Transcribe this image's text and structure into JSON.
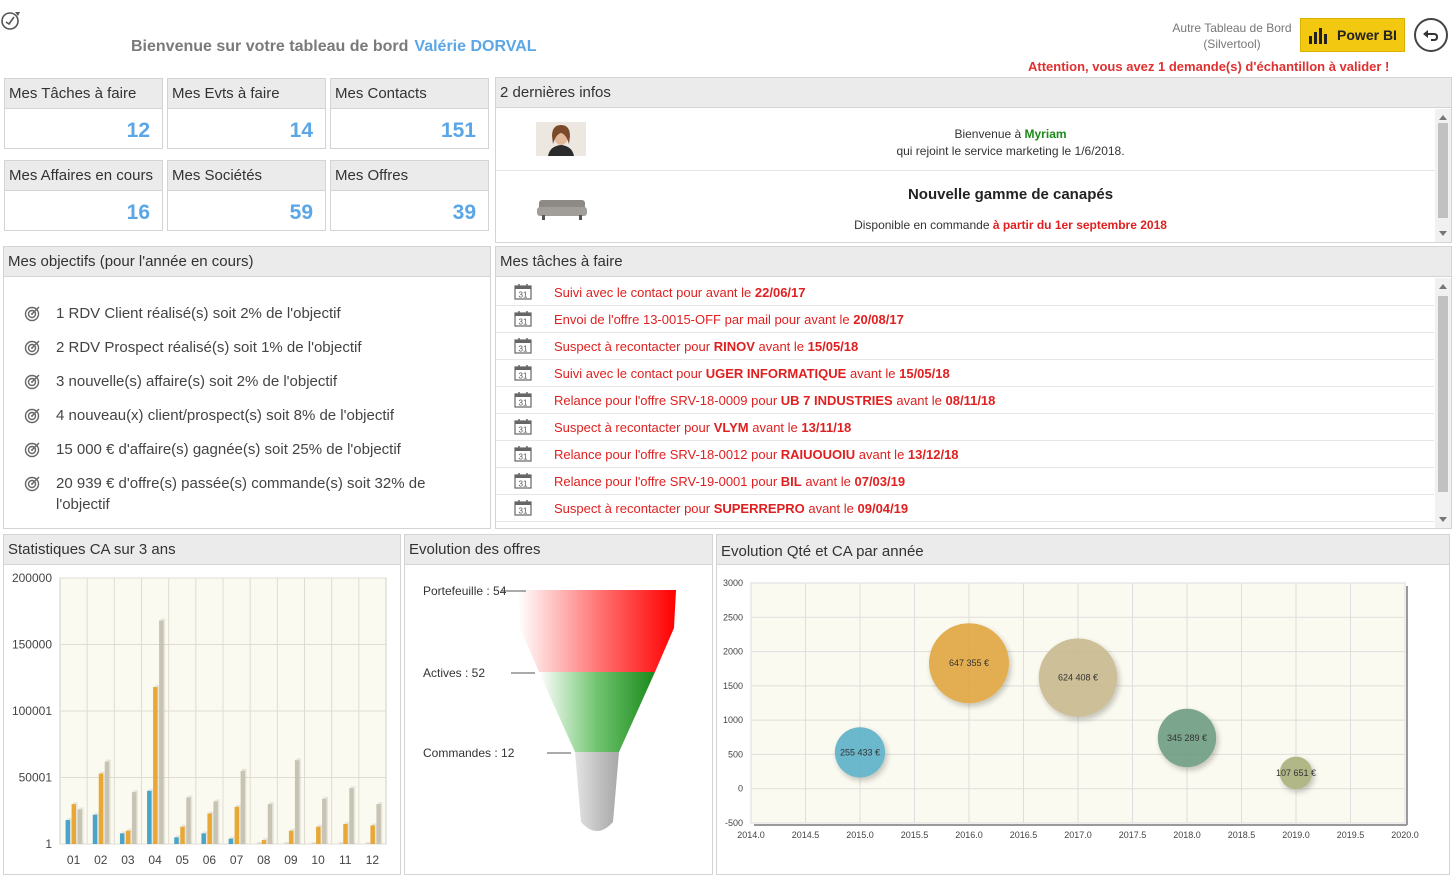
{
  "header": {
    "welcome": "Bienvenue sur votre tableau de bord",
    "user": "Valérie DORVAL",
    "other_board_line1": "Autre Tableau de Bord",
    "other_board_line2": "(Silvertool)",
    "powerbi_label": "Power BI",
    "alert": "Attention, vous avez 1 demande(s) d'échantillon à valider !"
  },
  "tiles": [
    {
      "label": "Mes Tâches à faire",
      "value": "12"
    },
    {
      "label": "Mes Evts à faire",
      "value": "14"
    },
    {
      "label": "Mes Contacts",
      "value": "151"
    },
    {
      "label": "Mes Affaires en cours",
      "value": "16"
    },
    {
      "label": "Mes Sociétés",
      "value": "59"
    },
    {
      "label": "Mes Offres",
      "value": "39"
    }
  ],
  "objectives": {
    "title": "Mes objectifs (pour l'année en cours)",
    "items": [
      "1 RDV Client réalisé(s) soit 2% de l'objectif",
      "2 RDV Prospect réalisé(s) soit 1% de l'objectif",
      "3 nouvelle(s) affaire(s) soit 2% de l'objectif",
      "4 nouveau(x) client/prospect(s) soit 8% de l'objectif",
      "15 000 € d'affaire(s) gagnée(s) soit 25% de l'objectif",
      "20 939 € d'offre(s) passée(s) commande(s) soit 32% de l'objectif"
    ]
  },
  "infos": {
    "title": "2 dernières infos",
    "item1": {
      "pre": "Bienvenue à ",
      "name": "Myriam",
      "line2": "qui rejoint le service marketing le 1/6/2018."
    },
    "item2": {
      "title": "Nouvelle gamme de canapés",
      "pre": "Disponible en commande ",
      "highlight": "à partir du 1er septembre 2018"
    }
  },
  "tasks": {
    "title": "Mes tâches à faire",
    "calendar_day": "31",
    "items": [
      {
        "pre": "Suivi avec le contact pour avant le ",
        "bold": "22/06/17",
        "mid": "",
        "bold2": ""
      },
      {
        "pre": "Envoi de l'offre 13-0015-OFF par mail pour avant le ",
        "bold": "20/08/17",
        "mid": "",
        "bold2": ""
      },
      {
        "pre": "Suspect à recontacter pour ",
        "bold": "RINOV",
        "mid": " avant le ",
        "bold2": "15/05/18"
      },
      {
        "pre": "Suivi avec le contact pour ",
        "bold": "UGER INFORMATIQUE",
        "mid": " avant le ",
        "bold2": "15/05/18"
      },
      {
        "pre": "Relance pour l'offre SRV-18-0009 pour ",
        "bold": "UB 7 INDUSTRIES",
        "mid": " avant le ",
        "bold2": "08/11/18"
      },
      {
        "pre": "Suspect à recontacter pour ",
        "bold": "VLYM",
        "mid": " avant le ",
        "bold2": "13/11/18"
      },
      {
        "pre": "Relance pour l'offre SRV-18-0012 pour ",
        "bold": "RAIUOUOIU",
        "mid": " avant le ",
        "bold2": "13/12/18"
      },
      {
        "pre": "Relance pour l'offre SRV-19-0001 pour ",
        "bold": "BIL",
        "mid": " avant le ",
        "bold2": "07/03/19"
      },
      {
        "pre": "Suspect à recontacter pour ",
        "bold": "SUPERREPRO",
        "mid": " avant le ",
        "bold2": "09/04/19"
      }
    ]
  },
  "colors": {
    "accent_blue": "#5aa6e6",
    "alert_red": "#e03030",
    "powerbi_yellow": "#f2c811",
    "bar_blue": "#4aa3c8",
    "bar_orange": "#e8a838",
    "bar_grey": "#c8c4b4"
  },
  "chart_data": [
    {
      "type": "bar",
      "title": "Statistiques CA sur 3 ans",
      "categories": [
        "01",
        "02",
        "03",
        "04",
        "05",
        "06",
        "07",
        "08",
        "09",
        "10",
        "11",
        "12"
      ],
      "y_ticks": [
        "1",
        "50001",
        "100001",
        "150000",
        "200000"
      ],
      "ylim": [
        0,
        200000
      ],
      "grid": true,
      "series": [
        {
          "values": [
            18000,
            22000,
            8000,
            40000,
            5000,
            8000,
            4000,
            0,
            0,
            0,
            0,
            0
          ]
        },
        {
          "values": [
            30000,
            53000,
            10000,
            118000,
            13000,
            23000,
            28000,
            3000,
            10000,
            13000,
            15000,
            14000
          ]
        },
        {
          "values": [
            26000,
            62000,
            39000,
            168000,
            35000,
            32000,
            55000,
            30000,
            63000,
            34000,
            42000,
            30000
          ]
        }
      ]
    },
    {
      "type": "funnel",
      "title": "Evolution des offres",
      "stages": [
        {
          "label": "Portefeuille : 54",
          "value": 54
        },
        {
          "label": "Actives : 52",
          "value": 52
        },
        {
          "label": "Commandes : 12",
          "value": 12
        }
      ]
    },
    {
      "type": "scatter",
      "subtype": "bubble",
      "title": "Evolution Qté et CA par année",
      "xlim": [
        2014,
        2020
      ],
      "ylim": [
        -500,
        3000
      ],
      "x_ticks": [
        "2014.0",
        "2014.5",
        "2015.0",
        "2015.5",
        "2016.0",
        "2016.5",
        "2017.0",
        "2017.5",
        "2018.0",
        "2018.5",
        "2019.0",
        "2019.5",
        "2020.0"
      ],
      "y_ticks": [
        "-500",
        "0",
        "500",
        "1000",
        "1500",
        "2000",
        "2500",
        "3000"
      ],
      "grid": true,
      "points": [
        {
          "x": 2015,
          "y": 530,
          "size": 255433,
          "label": "255 433 €",
          "color": "#5bb0c8"
        },
        {
          "x": 2016,
          "y": 1830,
          "size": 647355,
          "label": "647 355 €",
          "color": "#e0a640"
        },
        {
          "x": 2017,
          "y": 1620,
          "size": 624408,
          "label": "624 408 €",
          "color": "#c9b98e"
        },
        {
          "x": 2018,
          "y": 740,
          "size": 345289,
          "label": "345 289 €",
          "color": "#6e9c82"
        },
        {
          "x": 2019,
          "y": 230,
          "size": 107651,
          "label": "107 651 €",
          "color": "#a9b07c"
        }
      ]
    }
  ]
}
